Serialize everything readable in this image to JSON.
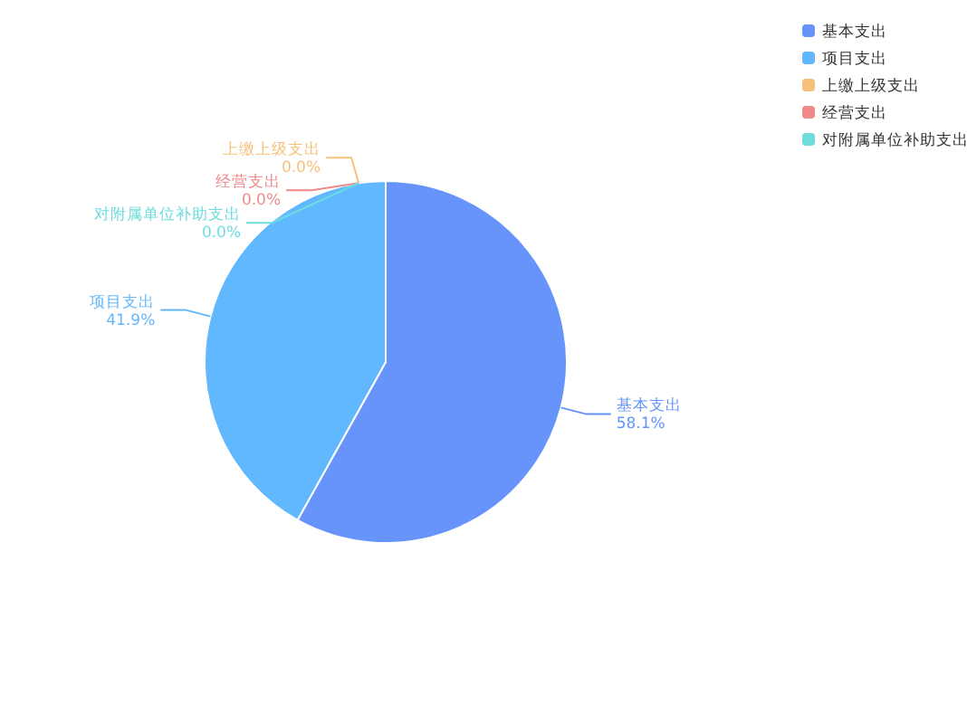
{
  "chart_data": {
    "type": "pie",
    "categories": [
      "基本支出",
      "项目支出",
      "上缴上级支出",
      "经营支出",
      "对附属单位补助支出"
    ],
    "values": [
      58.1,
      41.9,
      0.0,
      0.0,
      0.0
    ],
    "value_labels": [
      "58.1%",
      "41.9%",
      "0.0%",
      "0.0%",
      "0.0%"
    ],
    "colors": [
      "#6694fb",
      "#62b8fe",
      "#f6c27a",
      "#ee8a8a",
      "#6ddcdc"
    ],
    "legend": "top right"
  }
}
